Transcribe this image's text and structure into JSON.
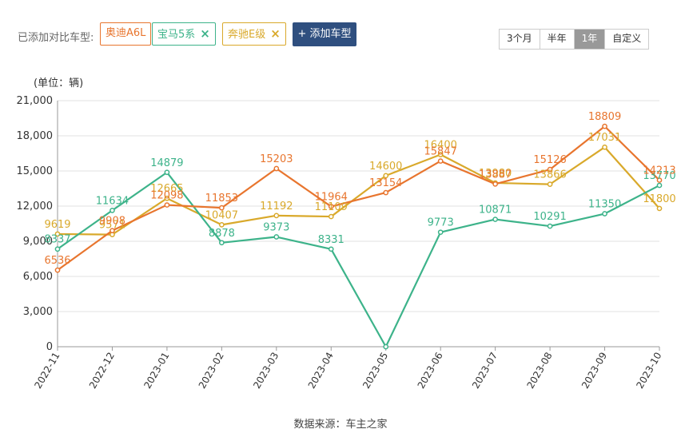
{
  "compare": {
    "label": "已添加对比车型:",
    "tags": [
      {
        "name": "奥迪A6L",
        "color": "#e8752e",
        "closable": false
      },
      {
        "name": "宝马5系",
        "color": "#3db38a",
        "closable": true,
        "close_icon": "×"
      },
      {
        "name": "奔驰E级",
        "color": "#d9a92b",
        "closable": true,
        "close_icon": "×"
      }
    ],
    "add_button": "+ 添加车型"
  },
  "range_options": [
    "3个月",
    "半年",
    "1年",
    "自定义"
  ],
  "range_selected": "1年",
  "source": "数据来源：车主之家",
  "chart_data": {
    "type": "line",
    "unit_label": "(单位：辆)",
    "x": [
      "2022-11",
      "2022-12",
      "2023-01",
      "2023-02",
      "2023-03",
      "2023-04",
      "2023-05",
      "2023-06",
      "2023-07",
      "2023-08",
      "2023-09",
      "2023-10"
    ],
    "ylim": [
      0,
      21000
    ],
    "yticks": [
      "0",
      "3,000",
      "6,000",
      "9,000",
      "12,000",
      "15,000",
      "18,000",
      "21,000"
    ],
    "yticks_values": [
      0,
      3000,
      6000,
      9000,
      12000,
      15000,
      18000,
      21000
    ],
    "grid": true,
    "series": [
      {
        "name": "奥迪A6L",
        "color": "#e8752e",
        "values": [
          6536,
          9908,
          12098,
          11853,
          15203,
          11964,
          13154,
          15847,
          13887,
          15126,
          18809,
          14213
        ]
      },
      {
        "name": "宝马5系",
        "color": "#3db38a",
        "values": [
          8337,
          11634,
          14879,
          8878,
          9373,
          8331,
          0,
          9773,
          10871,
          10291,
          11350,
          13770
        ]
      },
      {
        "name": "奔驰E级",
        "color": "#d9a92b",
        "values": [
          9619,
          9571,
          12665,
          10407,
          11192,
          11109,
          14600,
          16400,
          13980,
          13866,
          17031,
          11800
        ]
      }
    ],
    "data_labels": [
      [
        "6536",
        "9908",
        "12098",
        "11853",
        "15203",
        "11964",
        "13154",
        "15847",
        "13887",
        "15126",
        "18809",
        "14213"
      ],
      [
        "8337",
        "11634",
        "14879",
        "8878",
        "9373",
        "8331",
        "",
        "9773",
        "10871",
        "10291",
        "11350",
        "13770"
      ],
      [
        "9619",
        "9571",
        "12665",
        "10407",
        "11192",
        "11109",
        "14600",
        "16400",
        "13980",
        "13866",
        "17031",
        "11800"
      ]
    ]
  }
}
